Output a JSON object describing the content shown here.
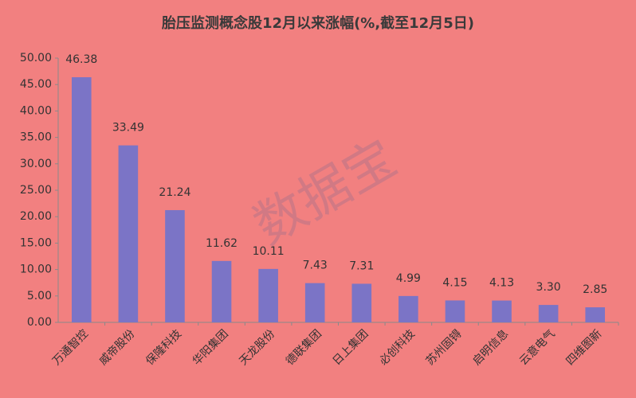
{
  "chart_data": {
    "type": "bar",
    "title": "胎压监测概念股12月以来涨幅(%,截至12月5日)",
    "categories": [
      "万通智控",
      "威帝股份",
      "保隆科技",
      "华阳集团",
      "天龙股份",
      "德联集团",
      "日上集团",
      "必创科技",
      "苏州固锝",
      "启明信息",
      "云意电气",
      "四维图新"
    ],
    "values": [
      46.38,
      33.49,
      21.24,
      11.62,
      10.11,
      7.43,
      7.31,
      4.99,
      4.15,
      4.13,
      3.3,
      2.85
    ],
    "value_labels": [
      "46.38",
      "33.49",
      "21.24",
      "11.62",
      "10.11",
      "7.43",
      "7.31",
      "4.99",
      "4.15",
      "4.13",
      "3.30",
      "2.85"
    ],
    "color": "#7b74c6",
    "ylim": [
      0,
      50
    ],
    "yticks": [
      {
        "value": 0,
        "label": "0.00"
      },
      {
        "value": 5,
        "label": "5.00"
      },
      {
        "value": 10,
        "label": "10.00"
      },
      {
        "value": 15,
        "label": "15.00"
      },
      {
        "value": 20,
        "label": "20.00"
      },
      {
        "value": 25,
        "label": "25.00"
      },
      {
        "value": 30,
        "label": "30.00"
      },
      {
        "value": 35,
        "label": "35.00"
      },
      {
        "value": 40,
        "label": "40.00"
      },
      {
        "value": 45,
        "label": "45.00"
      },
      {
        "value": 50,
        "label": "50.00"
      }
    ],
    "grid": false,
    "watermark": "数据宝"
  }
}
